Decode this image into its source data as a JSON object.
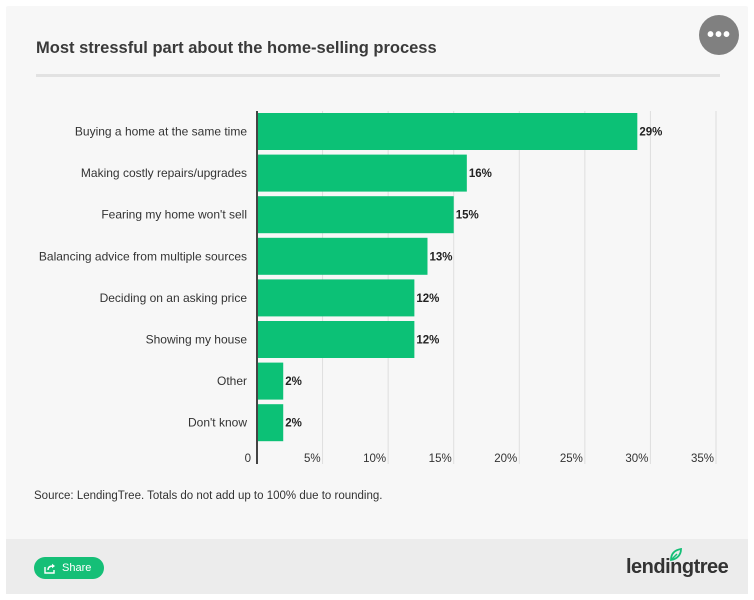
{
  "header": {
    "title": "Most stressful part about the home-selling process",
    "more_icon": "more-horizontal-icon",
    "more_glyph": "•••"
  },
  "chart_data": {
    "type": "bar",
    "orientation": "horizontal",
    "title": "Most stressful part about the home-selling process",
    "xlabel": "",
    "ylabel": "",
    "categories": [
      "Buying a home at the same time",
      "Making costly repairs/upgrades",
      "Fearing my home won't sell",
      "Balancing advice from multiple sources",
      "Deciding on an asking price",
      "Showing my house",
      "Other",
      "Don't know"
    ],
    "values": [
      29,
      16,
      15,
      13,
      12,
      12,
      2,
      2
    ],
    "value_labels": [
      "29%",
      "16%",
      "15%",
      "13%",
      "12%",
      "12%",
      "2%",
      "2%"
    ],
    "xlim": [
      0,
      35
    ],
    "x_ticks": [
      0,
      5,
      10,
      15,
      20,
      25,
      30,
      35
    ],
    "x_tick_labels": [
      "0",
      "5%",
      "10%",
      "15%",
      "20%",
      "25%",
      "30%",
      "35%"
    ],
    "grid": true,
    "bar_color": "#0cc176"
  },
  "footer": {
    "source": "Source: LendingTree. Totals do not add up to 100% due to rounding.",
    "share_label": "Share",
    "share_icon": "share-icon",
    "brand": "lendingtree",
    "brand_leaf_color": "#15bf77"
  }
}
